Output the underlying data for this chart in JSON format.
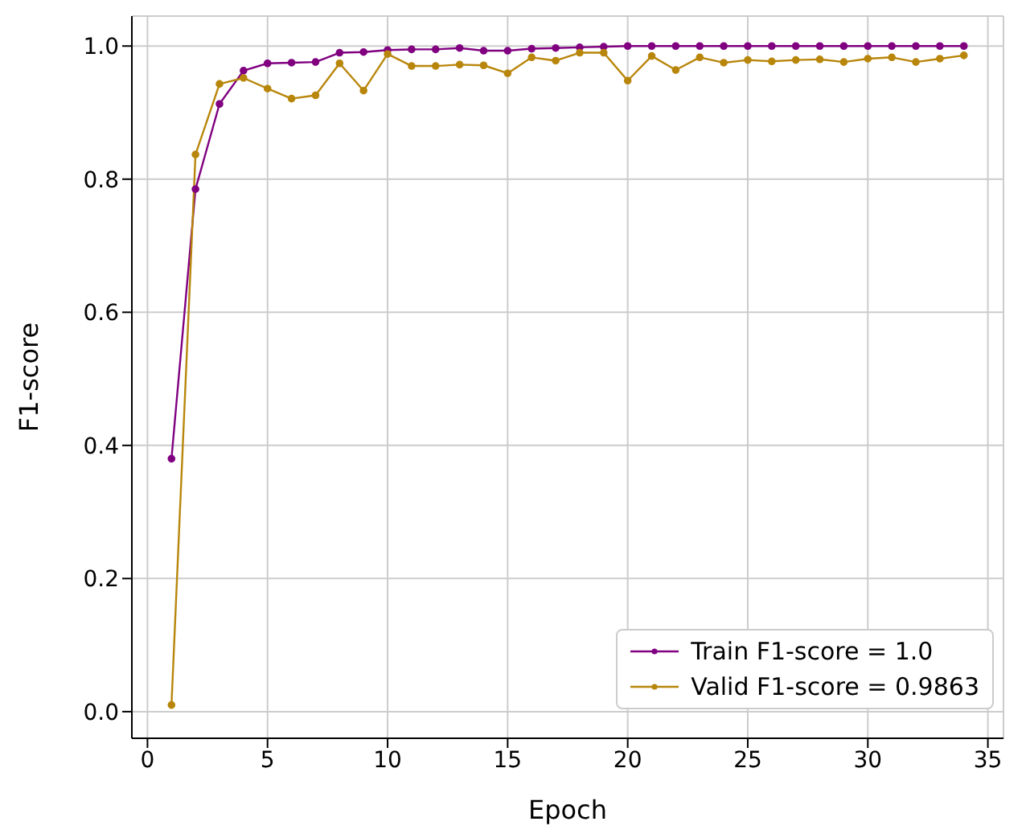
{
  "chart_data": {
    "type": "line",
    "xlabel": "Epoch",
    "ylabel": "F1-score",
    "x": [
      1,
      2,
      3,
      4,
      5,
      6,
      7,
      8,
      9,
      10,
      11,
      12,
      13,
      14,
      15,
      16,
      17,
      18,
      19,
      20,
      21,
      22,
      23,
      24,
      25,
      26,
      27,
      28,
      29,
      30,
      31,
      32,
      33,
      34
    ],
    "series": [
      {
        "name": "Train F1-score = 1.0",
        "color": "#800080",
        "values": [
          0.38,
          0.785,
          0.913,
          0.963,
          0.974,
          0.975,
          0.976,
          0.99,
          0.991,
          0.994,
          0.995,
          0.995,
          0.997,
          0.993,
          0.993,
          0.996,
          0.997,
          0.998,
          0.999,
          1.0,
          1.0,
          1.0,
          1.0,
          1.0,
          1.0,
          1.0,
          1.0,
          1.0,
          1.0,
          1.0,
          1.0,
          1.0,
          1.0,
          1.0
        ]
      },
      {
        "name": "Valid F1-score = 0.9863",
        "color": "#b8860b",
        "values": [
          0.01,
          0.837,
          0.943,
          0.952,
          0.936,
          0.921,
          0.926,
          0.974,
          0.933,
          0.988,
          0.97,
          0.97,
          0.972,
          0.971,
          0.959,
          0.983,
          0.978,
          0.99,
          0.99,
          0.948,
          0.985,
          0.964,
          0.983,
          0.975,
          0.979,
          0.977,
          0.979,
          0.98,
          0.976,
          0.981,
          0.983,
          0.976,
          0.981,
          0.986
        ]
      }
    ],
    "xlim": [
      -0.65,
      35.65
    ],
    "xticks": [
      0,
      5,
      10,
      15,
      20,
      25,
      30,
      35
    ],
    "ylim": [
      -0.04,
      1.045
    ],
    "yticks": [
      {
        "value": 0,
        "label": "0.0"
      },
      0.2,
      0.4,
      0.6,
      0.8,
      {
        "value": 1,
        "label": "1.0"
      }
    ],
    "grid": true,
    "legend": "bottom right",
    "marker": "circle",
    "line_style": "solid"
  }
}
